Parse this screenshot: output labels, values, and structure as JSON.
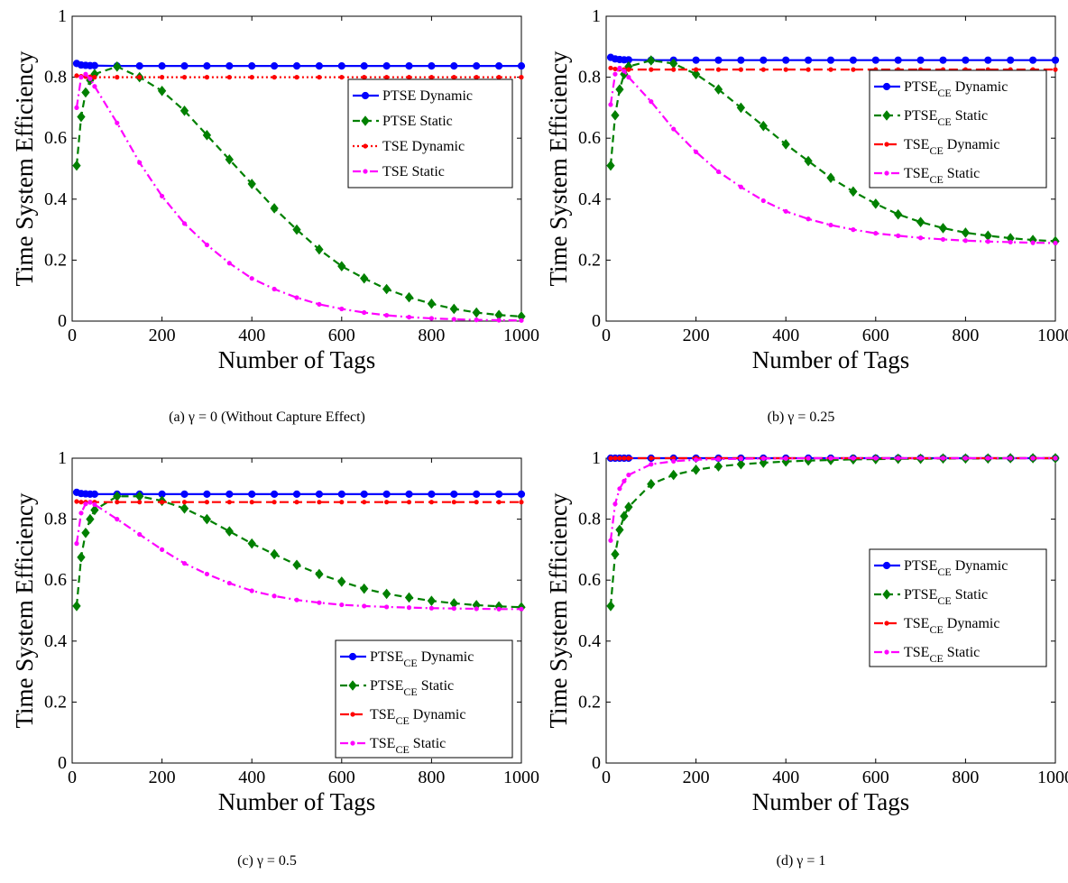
{
  "chart_data": [
    {
      "type": "line",
      "caption": "(a) γ = 0 (Without Capture Effect)",
      "xlabel": "Number of Tags",
      "ylabel": "Time System Efficiency",
      "xlim": [
        0,
        1000
      ],
      "ylim": [
        0,
        1
      ],
      "xticks": [
        "0",
        "200",
        "400",
        "600",
        "800",
        "1000"
      ],
      "yticks": [
        "0",
        "0.2",
        "0.4",
        "0.6",
        "0.8",
        "1"
      ],
      "legend_position": "upper-right",
      "subscript_in_legend": false,
      "x": [
        10,
        20,
        30,
        40,
        50,
        100,
        150,
        200,
        250,
        300,
        350,
        400,
        450,
        500,
        550,
        600,
        650,
        700,
        750,
        800,
        850,
        900,
        950,
        1000
      ],
      "series": [
        {
          "name": "PTSE",
          "suffix": "Dynamic",
          "color": "#0000ff",
          "dash": "solid",
          "marker": "circle",
          "values": [
            0.845,
            0.84,
            0.839,
            0.838,
            0.838,
            0.837,
            0.837,
            0.837,
            0.837,
            0.837,
            0.837,
            0.837,
            0.837,
            0.837,
            0.837,
            0.837,
            0.837,
            0.837,
            0.837,
            0.837,
            0.837,
            0.837,
            0.837,
            0.837
          ]
        },
        {
          "name": "PTSE",
          "suffix": "Static",
          "color": "#008000",
          "dash": "dashed",
          "marker": "diamond",
          "values": [
            0.51,
            0.67,
            0.75,
            0.79,
            0.81,
            0.835,
            0.8,
            0.755,
            0.69,
            0.61,
            0.53,
            0.45,
            0.37,
            0.3,
            0.235,
            0.18,
            0.14,
            0.105,
            0.078,
            0.057,
            0.04,
            0.028,
            0.02,
            0.015
          ]
        },
        {
          "name": "TSE",
          "suffix": "Dynamic",
          "color": "#ff0000",
          "dash": "dotted",
          "marker": "dot",
          "values": [
            0.805,
            0.803,
            0.802,
            0.801,
            0.8,
            0.8,
            0.8,
            0.8,
            0.8,
            0.8,
            0.8,
            0.8,
            0.8,
            0.8,
            0.8,
            0.8,
            0.8,
            0.8,
            0.8,
            0.8,
            0.8,
            0.8,
            0.8,
            0.8
          ]
        },
        {
          "name": "TSE",
          "suffix": "Static",
          "color": "#ff00ff",
          "dash": "dashdot",
          "marker": "dot",
          "values": [
            0.7,
            0.8,
            0.81,
            0.795,
            0.77,
            0.65,
            0.52,
            0.41,
            0.32,
            0.25,
            0.19,
            0.14,
            0.105,
            0.077,
            0.055,
            0.04,
            0.028,
            0.019,
            0.013,
            0.009,
            0.006,
            0.004,
            0.003,
            0.002
          ]
        }
      ]
    },
    {
      "type": "line",
      "caption": "(b) γ = 0.25",
      "xlabel": "Number of Tags",
      "ylabel": "Time System Efficiency",
      "xlim": [
        0,
        1000
      ],
      "ylim": [
        0,
        1
      ],
      "xticks": [
        "0",
        "200",
        "400",
        "600",
        "800",
        "1000"
      ],
      "yticks": [
        "0",
        "0.2",
        "0.4",
        "0.6",
        "0.8",
        "1"
      ],
      "legend_position": "upper-right",
      "subscript_in_legend": true,
      "x": [
        10,
        20,
        30,
        40,
        50,
        100,
        150,
        200,
        250,
        300,
        350,
        400,
        450,
        500,
        550,
        600,
        650,
        700,
        750,
        800,
        850,
        900,
        950,
        1000
      ],
      "series": [
        {
          "name": "PTSE",
          "sub": "CE",
          "suffix": "Dynamic",
          "color": "#0000ff",
          "dash": "solid",
          "marker": "circle",
          "values": [
            0.865,
            0.86,
            0.858,
            0.857,
            0.857,
            0.856,
            0.856,
            0.856,
            0.856,
            0.856,
            0.856,
            0.856,
            0.856,
            0.856,
            0.856,
            0.856,
            0.856,
            0.856,
            0.856,
            0.856,
            0.856,
            0.856,
            0.856,
            0.856
          ]
        },
        {
          "name": "PTSE",
          "sub": "CE",
          "suffix": "Static",
          "color": "#008000",
          "dash": "dashed",
          "marker": "diamond",
          "values": [
            0.51,
            0.675,
            0.76,
            0.81,
            0.835,
            0.855,
            0.845,
            0.81,
            0.76,
            0.7,
            0.64,
            0.58,
            0.525,
            0.47,
            0.425,
            0.385,
            0.35,
            0.325,
            0.305,
            0.29,
            0.28,
            0.272,
            0.266,
            0.262
          ]
        },
        {
          "name": "TSE",
          "sub": "CE",
          "suffix": "Dynamic",
          "color": "#ff0000",
          "dash": "longdash",
          "marker": "dot",
          "values": [
            0.83,
            0.827,
            0.826,
            0.825,
            0.825,
            0.825,
            0.825,
            0.825,
            0.825,
            0.825,
            0.825,
            0.825,
            0.825,
            0.825,
            0.825,
            0.825,
            0.825,
            0.825,
            0.825,
            0.825,
            0.825,
            0.825,
            0.825,
            0.825
          ]
        },
        {
          "name": "TSE",
          "sub": "CE",
          "suffix": "Static",
          "color": "#ff00ff",
          "dash": "dashdot",
          "marker": "dot",
          "values": [
            0.71,
            0.81,
            0.83,
            0.82,
            0.8,
            0.72,
            0.63,
            0.555,
            0.49,
            0.44,
            0.395,
            0.36,
            0.335,
            0.315,
            0.3,
            0.288,
            0.28,
            0.273,
            0.268,
            0.264,
            0.261,
            0.259,
            0.257,
            0.256
          ]
        }
      ]
    },
    {
      "type": "line",
      "caption": "(c) γ = 0.5",
      "xlabel": "Number of Tags",
      "ylabel": "Time System Efficiency",
      "xlim": [
        0,
        1000
      ],
      "ylim": [
        0,
        1
      ],
      "xticks": [
        "0",
        "200",
        "400",
        "600",
        "800",
        "1000"
      ],
      "yticks": [
        "0",
        "0.2",
        "0.4",
        "0.6",
        "0.8",
        "1"
      ],
      "legend_position": "lower-right",
      "subscript_in_legend": true,
      "x": [
        10,
        20,
        30,
        40,
        50,
        100,
        150,
        200,
        250,
        300,
        350,
        400,
        450,
        500,
        550,
        600,
        650,
        700,
        750,
        800,
        850,
        900,
        950,
        1000
      ],
      "series": [
        {
          "name": "PTSE",
          "sub": "CE",
          "suffix": "Dynamic",
          "color": "#0000ff",
          "dash": "solid",
          "marker": "circle",
          "values": [
            0.888,
            0.884,
            0.883,
            0.882,
            0.882,
            0.882,
            0.882,
            0.882,
            0.882,
            0.882,
            0.882,
            0.882,
            0.882,
            0.882,
            0.882,
            0.882,
            0.882,
            0.882,
            0.882,
            0.882,
            0.882,
            0.882,
            0.882,
            0.882
          ]
        },
        {
          "name": "PTSE",
          "sub": "CE",
          "suffix": "Static",
          "color": "#008000",
          "dash": "dashed",
          "marker": "diamond",
          "values": [
            0.515,
            0.675,
            0.755,
            0.8,
            0.83,
            0.875,
            0.875,
            0.86,
            0.835,
            0.8,
            0.76,
            0.72,
            0.685,
            0.65,
            0.62,
            0.595,
            0.572,
            0.555,
            0.543,
            0.532,
            0.524,
            0.518,
            0.514,
            0.511
          ]
        },
        {
          "name": "TSE",
          "sub": "CE",
          "suffix": "Dynamic",
          "color": "#ff0000",
          "dash": "longdash",
          "marker": "dot",
          "values": [
            0.858,
            0.856,
            0.856,
            0.856,
            0.856,
            0.856,
            0.856,
            0.856,
            0.856,
            0.856,
            0.856,
            0.856,
            0.856,
            0.856,
            0.856,
            0.856,
            0.856,
            0.856,
            0.856,
            0.856,
            0.856,
            0.856,
            0.856,
            0.856
          ]
        },
        {
          "name": "TSE",
          "sub": "CE",
          "suffix": "Static",
          "color": "#ff00ff",
          "dash": "dashdot",
          "marker": "dot",
          "values": [
            0.72,
            0.82,
            0.85,
            0.855,
            0.848,
            0.8,
            0.75,
            0.7,
            0.655,
            0.62,
            0.59,
            0.565,
            0.548,
            0.535,
            0.526,
            0.519,
            0.515,
            0.512,
            0.51,
            0.508,
            0.507,
            0.506,
            0.505,
            0.505
          ]
        }
      ]
    },
    {
      "type": "line",
      "caption": "(d) γ = 1",
      "xlabel": "Number of Tags",
      "ylabel": "Time System Efficiency",
      "xlim": [
        0,
        1000
      ],
      "ylim": [
        0,
        1
      ],
      "xticks": [
        "0",
        "200",
        "400",
        "600",
        "800",
        "1000"
      ],
      "yticks": [
        "0",
        "0.2",
        "0.4",
        "0.6",
        "0.8",
        "1"
      ],
      "legend_position": "center-right",
      "subscript_in_legend": true,
      "x": [
        10,
        20,
        30,
        40,
        50,
        100,
        150,
        200,
        250,
        300,
        350,
        400,
        450,
        500,
        550,
        600,
        650,
        700,
        750,
        800,
        850,
        900,
        950,
        1000
      ],
      "series": [
        {
          "name": "PTSE",
          "sub": "CE",
          "suffix": "Dynamic",
          "color": "#0000ff",
          "dash": "solid",
          "marker": "circle",
          "values": [
            1,
            1,
            1,
            1,
            1,
            1,
            1,
            1,
            1,
            1,
            1,
            1,
            1,
            1,
            1,
            1,
            1,
            1,
            1,
            1,
            1,
            1,
            1,
            1
          ]
        },
        {
          "name": "PTSE",
          "sub": "CE",
          "suffix": "Static",
          "color": "#008000",
          "dash": "dashed",
          "marker": "diamond",
          "values": [
            0.515,
            0.685,
            0.765,
            0.81,
            0.84,
            0.915,
            0.945,
            0.962,
            0.973,
            0.98,
            0.985,
            0.989,
            0.992,
            0.994,
            0.996,
            0.997,
            0.998,
            0.998,
            0.999,
            0.999,
            0.999,
            1,
            1,
            1
          ]
        },
        {
          "name": "TSE",
          "sub": "CE",
          "suffix": "Dynamic",
          "color": "#ff0000",
          "dash": "longdash",
          "marker": "dot",
          "values": [
            1,
            1,
            1,
            1,
            1,
            1,
            1,
            1,
            1,
            1,
            1,
            1,
            1,
            1,
            1,
            1,
            1,
            1,
            1,
            1,
            1,
            1,
            1,
            1
          ]
        },
        {
          "name": "TSE",
          "sub": "CE",
          "suffix": "Static",
          "color": "#ff00ff",
          "dash": "dashdot",
          "marker": "dot",
          "values": [
            0.73,
            0.85,
            0.9,
            0.925,
            0.945,
            0.98,
            0.99,
            0.995,
            0.997,
            0.998,
            0.999,
            0.999,
            1,
            1,
            1,
            1,
            1,
            1,
            1,
            1,
            1,
            1,
            1,
            1
          ]
        }
      ]
    }
  ]
}
